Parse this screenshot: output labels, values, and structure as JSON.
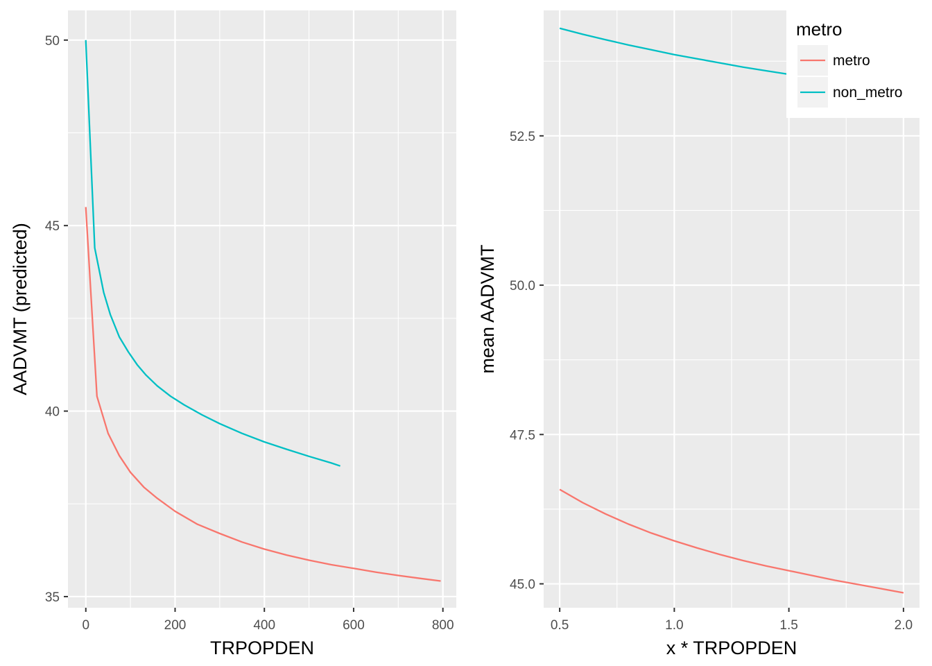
{
  "chart_data": [
    {
      "type": "line",
      "xlabel": "TRPOPDEN",
      "ylabel": "AADVMT (predicted)",
      "xlim": [
        -40,
        830
      ],
      "ylim": [
        34.7,
        50.8
      ],
      "x_ticks": [
        0,
        200,
        400,
        600,
        800
      ],
      "x_tick_labels": [
        "0",
        "200",
        "400",
        "600",
        "800"
      ],
      "y_ticks": [
        35,
        40,
        45,
        50
      ],
      "y_tick_labels": [
        "35",
        "40",
        "45",
        "50"
      ],
      "grid": true,
      "series": [
        {
          "name": "metro",
          "color": "#F8766D",
          "x": [
            0,
            25,
            50,
            75,
            100,
            130,
            160,
            200,
            250,
            300,
            350,
            400,
            450,
            500,
            550,
            600,
            650,
            700,
            750,
            795
          ],
          "y": [
            45.5,
            40.4,
            39.4,
            38.8,
            38.35,
            37.95,
            37.65,
            37.3,
            36.95,
            36.7,
            36.47,
            36.28,
            36.12,
            35.98,
            35.86,
            35.76,
            35.66,
            35.57,
            35.49,
            35.42
          ]
        },
        {
          "name": "non_metro",
          "color": "#00BFC4",
          "x": [
            0,
            20,
            40,
            55,
            75,
            95,
            115,
            135,
            160,
            190,
            220,
            260,
            300,
            350,
            400,
            450,
            500,
            550,
            570
          ],
          "y": [
            50.0,
            44.4,
            43.2,
            42.6,
            42.0,
            41.6,
            41.25,
            40.97,
            40.68,
            40.4,
            40.17,
            39.9,
            39.66,
            39.4,
            39.17,
            38.97,
            38.78,
            38.6,
            38.52
          ]
        }
      ]
    },
    {
      "type": "line",
      "xlabel": "x * TRPOPDEN",
      "ylabel": "mean AADVMT",
      "xlim": [
        0.43,
        2.07
      ],
      "ylim": [
        44.6,
        54.6
      ],
      "x_ticks": [
        0.5,
        1.0,
        1.5,
        2.0
      ],
      "x_tick_labels": [
        "0.5",
        "1.0",
        "1.5",
        "2.0"
      ],
      "y_ticks": [
        45.0,
        47.5,
        50.0,
        52.5
      ],
      "y_tick_labels": [
        "45.0",
        "47.5",
        "50.0",
        "52.5"
      ],
      "grid": true,
      "series": [
        {
          "name": "metro",
          "color": "#F8766D",
          "x": [
            0.5,
            0.6,
            0.7,
            0.8,
            0.9,
            1.0,
            1.1,
            1.2,
            1.3,
            1.4,
            1.5,
            1.6,
            1.7,
            1.8,
            1.9,
            2.0
          ],
          "y": [
            46.58,
            46.36,
            46.17,
            46.0,
            45.85,
            45.72,
            45.6,
            45.49,
            45.39,
            45.3,
            45.22,
            45.14,
            45.06,
            44.99,
            44.92,
            44.85
          ]
        },
        {
          "name": "non_metro",
          "color": "#00BFC4",
          "x": [
            0.5,
            0.6,
            0.7,
            0.8,
            0.9,
            1.0,
            1.1,
            1.2,
            1.3,
            1.4,
            1.5,
            1.6,
            1.7,
            1.8,
            1.9,
            2.0
          ],
          "y": [
            54.3,
            54.2,
            54.11,
            54.02,
            53.94,
            53.86,
            53.79,
            53.72,
            53.65,
            53.59,
            53.53,
            53.47,
            53.42,
            53.37,
            53.32,
            53.27
          ]
        }
      ]
    }
  ],
  "legend": {
    "title": "metro",
    "position": "top-right",
    "items": [
      {
        "label": "metro",
        "color": "#F8766D"
      },
      {
        "label": "non_metro",
        "color": "#00BFC4"
      }
    ]
  }
}
